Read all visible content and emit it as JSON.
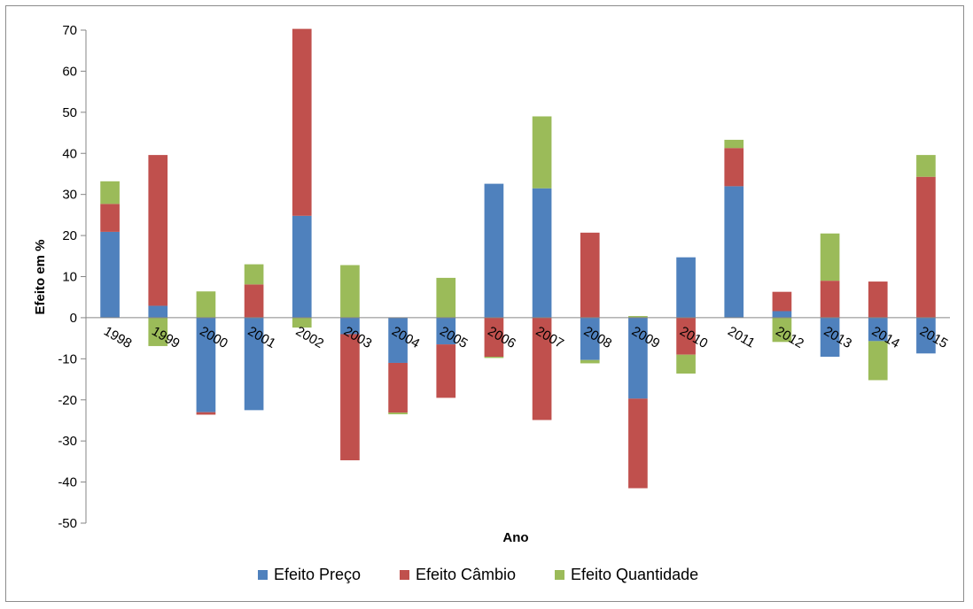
{
  "chart_data": {
    "type": "bar",
    "stacked": true,
    "title": "",
    "xlabel": "Ano",
    "ylabel": "Efeito em %",
    "ylim": [
      -50,
      70
    ],
    "yticks": [
      70,
      60,
      50,
      40,
      30,
      20,
      10,
      0,
      -10,
      -20,
      -30,
      -40,
      -50
    ],
    "grid": false,
    "legend_position": "bottom",
    "categories": [
      "1998",
      "1999",
      "2000",
      "2001",
      "2002",
      "2003",
      "2004",
      "2005",
      "2006",
      "2007",
      "2008",
      "2009",
      "2010",
      "2011",
      "2012",
      "2013",
      "2014",
      "2015"
    ],
    "series": [
      {
        "name": "Efeito Preço",
        "color": "#4f81bd",
        "values": [
          20.9,
          2.9,
          -23.0,
          -22.5,
          24.8,
          -4.0,
          -11.0,
          -6.5,
          32.6,
          31.5,
          -10.3,
          -19.7,
          14.7,
          32.0,
          1.6,
          -9.5,
          -5.7,
          -8.7
        ]
      },
      {
        "name": "Efeito Câmbio",
        "color": "#c0504d",
        "values": [
          6.8,
          36.7,
          -0.6,
          8.1,
          45.5,
          -30.7,
          -12.1,
          -13.0,
          -9.5,
          -24.9,
          20.7,
          -21.8,
          -9.0,
          9.3,
          4.7,
          9.0,
          8.8,
          34.3
        ]
      },
      {
        "name": "Efeito Quantidade",
        "color": "#9bbb59",
        "values": [
          5.5,
          -6.9,
          6.4,
          4.9,
          -2.4,
          12.8,
          -0.4,
          9.7,
          -0.3,
          17.5,
          -0.8,
          0.4,
          -4.6,
          2.0,
          -5.9,
          11.5,
          -9.5,
          5.3
        ]
      }
    ]
  }
}
